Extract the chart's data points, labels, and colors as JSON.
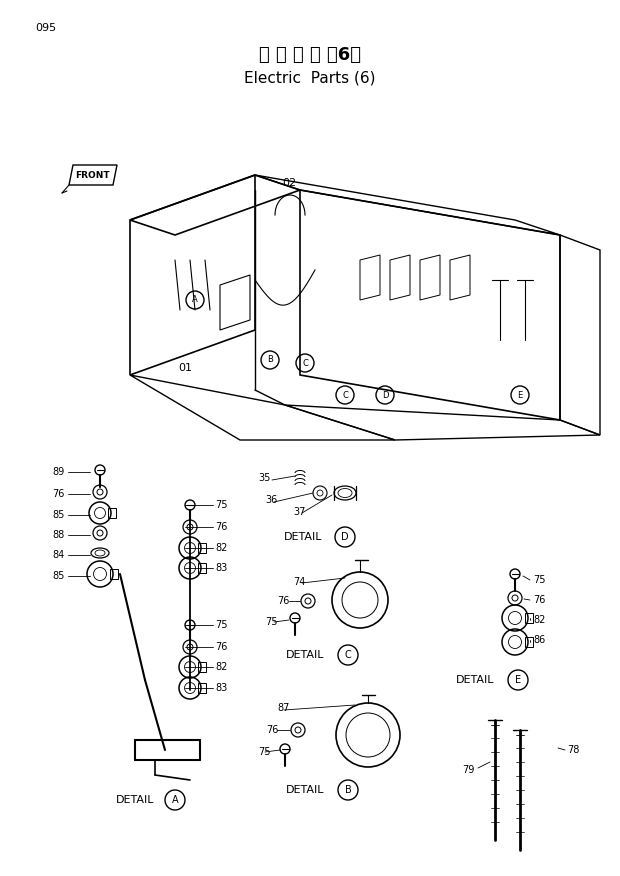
{
  "page_number": "095",
  "title_japanese": "電 気 部 品 （6）",
  "title_english": "Electric  Parts (6)",
  "bg": "#ffffff",
  "fg": "#000000",
  "fig_width": 6.2,
  "fig_height": 8.76,
  "dpi": 100
}
